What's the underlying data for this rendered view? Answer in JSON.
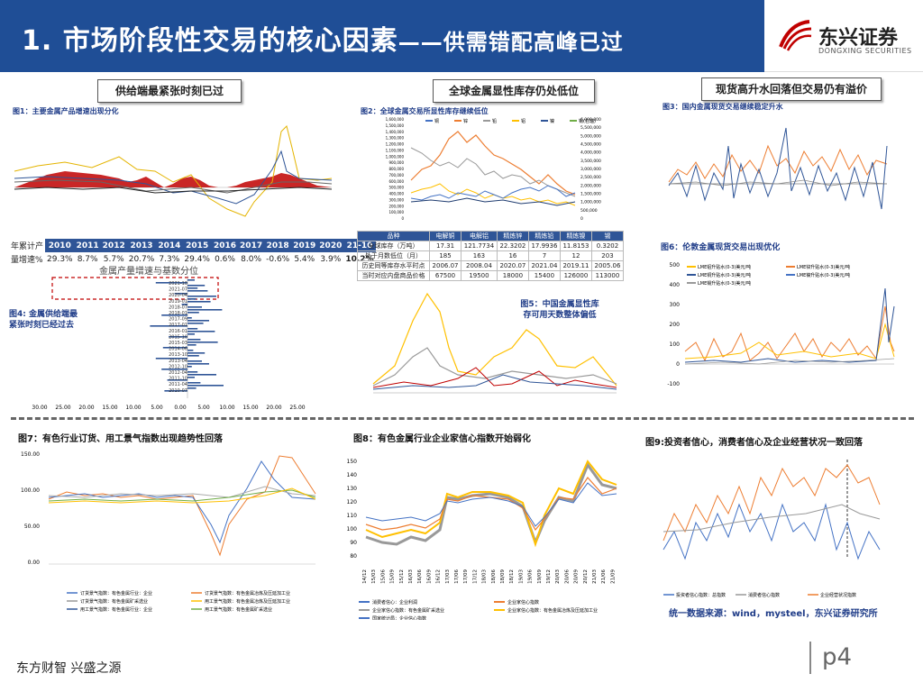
{
  "header": {
    "title": "1. 市场阶段性交易的核心因素",
    "subtitle": "——供需错配高峰已过"
  },
  "logo": {
    "cn": "东兴证券",
    "en": "DONGXING SECURITIES"
  },
  "pills": [
    "供给端最紧张时刻已过",
    "全球金属显性库存仍处低位",
    "现货高升水回落但交易仍有溢价"
  ],
  "captions": {
    "fig1": "图1：主要金属产品增速出现分化",
    "fig2": "图2：全球金属交易所显性库存继续低位",
    "fig3": "图3：国内金属现货交易继续稳定升水",
    "fig4": "图4: 金属供给端最紧张时刻已经过去",
    "fig4_title": "金属产量增速与基数分位",
    "fig5": "图5：中国金属显性库存可用天数整体偏低",
    "fig6": "图6：伦敦金属现货交易出现优化",
    "fig7": "图7：有色行业订货、用工景气指数出现趋势性回落",
    "fig8": "图8：有色金属行业企业家信心指数开始弱化",
    "fig9": "图9:投资者信心，消费者信心及企业经营状况一致回落"
  },
  "growth_table": {
    "row_labels": [
      "年累计产",
      "量增速%"
    ],
    "years": [
      "2010",
      "2011",
      "2012",
      "2013",
      "2014",
      "2015",
      "2016",
      "2017",
      "2018",
      "2019",
      "2020",
      "21-10"
    ],
    "values": [
      "29.3%",
      "8.7%",
      "5.7%",
      "20.7%",
      "7.3%",
      "29.4%",
      "0.6%",
      "8.0%",
      "-0.6%",
      "5.4%",
      "3.9%",
      "10.2%"
    ]
  },
  "inventory_table": {
    "headers": [
      "品种",
      "电解铜",
      "电解铝",
      "精炼锌",
      "精炼铅",
      "精炼镍",
      "锡"
    ],
    "rows": [
      [
        "全球库存（万吨）",
        "17.31",
        "121.7734",
        "22.3202",
        "17.9936",
        "11.8153",
        "0.3202"
      ],
      [
        "处于月数低位（月）",
        "185",
        "163",
        "16",
        "7",
        "12",
        "203"
      ],
      [
        "历史同等库存水平时点",
        "2006.07",
        "2008.04",
        "2020.07",
        "2021.04",
        "2019.11",
        "2005.06"
      ],
      [
        "当时对应内盘商品价格",
        "67500",
        "19500",
        "18000",
        "15400",
        "126000",
        "113000"
      ]
    ]
  },
  "notes": {
    "fig5_note_1": "图5：中国金属显性库",
    "fig5_note_2": "存可用天数整体偏低",
    "fig4_note_1": "图4: 金属供给端最",
    "fig4_note_2": "紧张时刻已经过去"
  },
  "source": "统一数据来源：wind，mysteel，东兴证券研究所",
  "footer": {
    "left": "东方财智 兴盛之源",
    "page": "p4"
  },
  "colors": {
    "brand": "#1f4e96",
    "accent": "#c00000"
  },
  "chart_data": [
    {
      "id": "fig2",
      "type": "line",
      "title": "全球金属交易所显性库存",
      "legend": [
        "铜",
        "锌",
        "铅",
        "铝",
        "镍",
        "锡(右轴)"
      ],
      "ylim": [
        0,
        1600000
      ],
      "yticks": [
        "0",
        "100,000",
        "200,000",
        "300,000",
        "400,000",
        "500,000",
        "600,000",
        "700,000",
        "800,000",
        "900,000",
        "1,000,000",
        "1,100,000",
        "1,200,000",
        "1,300,000",
        "1,400,000",
        "1,500,000",
        "1,600,000"
      ],
      "y2ticks": [
        "0",
        "500,000",
        "1,000,000",
        "1,500,000",
        "2,000,000",
        "2,500,000",
        "3,000,000",
        "3,500,000",
        "4,000,000",
        "4,500,000",
        "5,000,000",
        "5,500,000",
        "6,000,000"
      ]
    },
    {
      "id": "fig4",
      "type": "bar",
      "title": "金属产量增速与基数分位",
      "categories": [
        "2021-10",
        "2021-07",
        "2020-04",
        "2019-01",
        "2018-07",
        "2018-01",
        "2017-09",
        "2017-01",
        "2016-01",
        "2015-10",
        "2015-03",
        "2014-06",
        "2013-10",
        "2013-04",
        "2012-10",
        "2012-04",
        "2011-10",
        "2011-04",
        "2010-07"
      ],
      "xticks": [
        "30.00",
        "25.00",
        "20.00",
        "15.00",
        "10.00",
        "5.00",
        "0.00",
        "5.00",
        "10.00",
        "15.00",
        "20.00",
        "25.00"
      ]
    },
    {
      "id": "fig6",
      "type": "line",
      "legend": [
        "LME铝升贴水(0-3)美元/吨",
        "LME锌升贴水(0-3)美元/吨",
        "LME铜升贴水(0-3)美元/吨",
        "LME镍升贴水(0-3)美元/吨",
        "LME锡升贴水(0-3)美元/吨"
      ],
      "yticks": [
        "500",
        "400",
        "300",
        "200",
        "100",
        "0",
        "-100"
      ]
    },
    {
      "id": "fig8",
      "type": "line",
      "yticks": [
        "150",
        "140",
        "130",
        "120",
        "110",
        "100",
        "90",
        "80"
      ],
      "xticks": [
        "14/12",
        "15/03",
        "15/06",
        "15/09",
        "15/12",
        "16/03",
        "16/06",
        "16/09",
        "16/12",
        "17/03",
        "17/06",
        "17/09",
        "17/12",
        "18/03",
        "18/06",
        "18/09",
        "18/12",
        "19/03",
        "19/06",
        "19/09",
        "19/12",
        "20/03",
        "20/06",
        "20/09",
        "20/12",
        "21/03",
        "21/06",
        "21/09"
      ],
      "legend": [
        "消费者信心：企业利润",
        "企业家信心指数",
        "企业家信心指数：有色金属矿采选业",
        "企业家信心指数：有色金属冶炼及压延加工业",
        "国家统计局：企业信心指数"
      ]
    },
    {
      "id": "fig7",
      "type": "line",
      "yticks": [
        "150.00",
        "100.00",
        "50.00",
        "0.00"
      ],
      "legend": [
        "订货景气指数：有色金属行业：企业",
        "订货景气指数：有色金属冶炼及压延加工业",
        "订货景气指数：有色金属矿采选业",
        "用工景气指数：有色金属冶炼及压延加工业",
        "用工景气指数：有色金属行业：企业",
        "用工景气指数：有色金属矿采选业"
      ]
    },
    {
      "id": "fig9",
      "type": "line",
      "legend": [
        "投资者信心指数：总指数",
        "消费者信心指数",
        "企业经营状况指数"
      ]
    }
  ]
}
